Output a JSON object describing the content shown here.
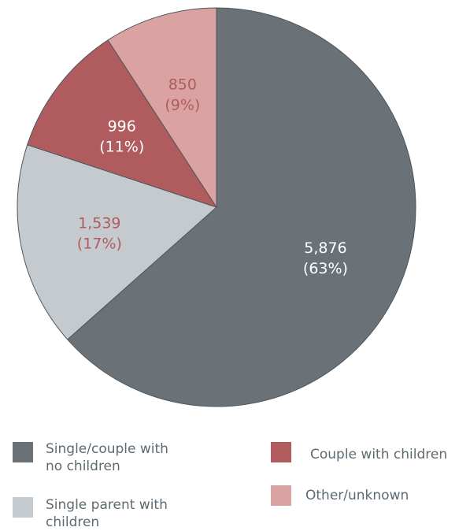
{
  "chart_data": {
    "type": "pie",
    "categories": [
      "Single/couple with no children",
      "Single parent with children",
      "Couple with children",
      "Other/unknown"
    ],
    "values": [
      5876,
      1539,
      996,
      850
    ],
    "value_labels": [
      "5,876",
      "1,539",
      "996",
      "850"
    ],
    "percent_labels": [
      "(63%)",
      "(17%)",
      "(11%)",
      "(9%)"
    ],
    "colors": [
      "#6a7278",
      "#c5cacf",
      "#b05c5f",
      "#daa3a1"
    ],
    "label_colors": [
      "#ffffff",
      "#b05c5f",
      "#ffffff",
      "#b05c5f"
    ],
    "legend": [
      {
        "label": "Single/couple with\nno children",
        "color": "#6a7278"
      },
      {
        "label": "Couple with children",
        "color": "#b05c5f"
      },
      {
        "label": "Single parent with\nchildren",
        "color": "#c5cacf"
      },
      {
        "label": "Other/unknown",
        "color": "#daa3a1"
      }
    ],
    "legend_placement": "bottom",
    "start": "top",
    "direction": "clockwise"
  }
}
